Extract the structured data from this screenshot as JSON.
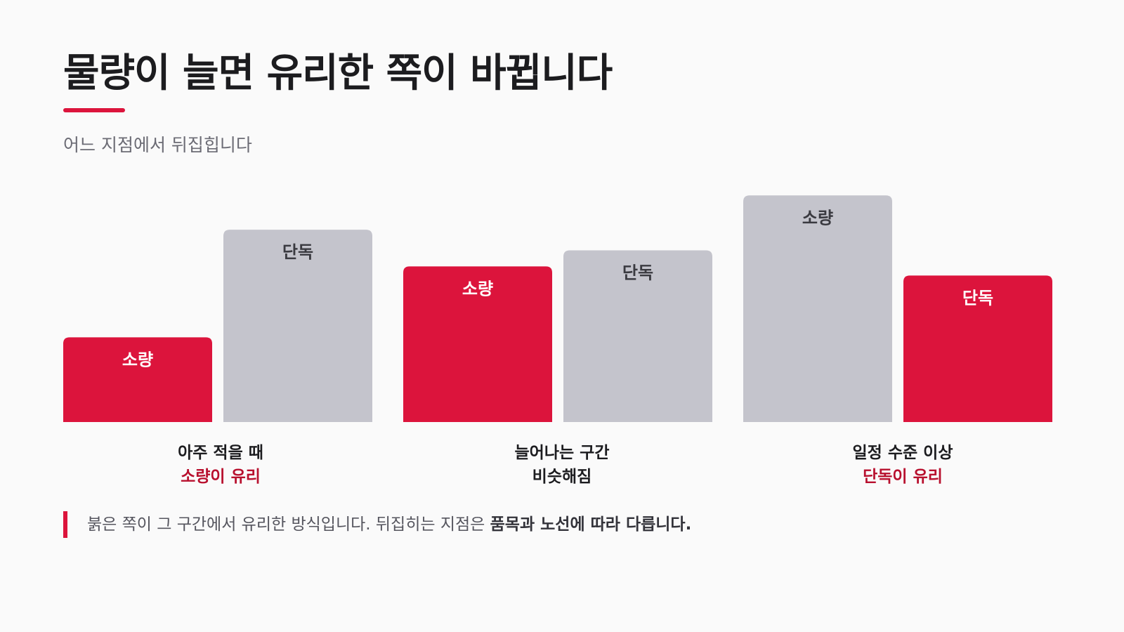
{
  "title": "물량이 늘면 유리한 쪽이 바뀝니다",
  "subtitle": "어느 지점에서 뒤집힙니다",
  "colors": {
    "accent": "#dc143c",
    "neutral": "#c4c4cc",
    "on_neutral_text": "#3a3a40",
    "on_accent_text": "#ffffff",
    "winner_label": "#b8102e"
  },
  "chart_data": {
    "type": "bar",
    "categories": [
      "아주 적을 때",
      "늘어나는 구간",
      "일정 수준 이상"
    ],
    "series_labels": [
      "소량",
      "단독"
    ],
    "values": [
      [
        0.37,
        0.84
      ],
      [
        0.68,
        0.75
      ],
      [
        0.99,
        0.64
      ]
    ],
    "highlighted": [
      "소량",
      "소량",
      "단독"
    ],
    "ylim": [
      0,
      1
    ],
    "groups": [
      {
        "bars": [
          {
            "label": "소량",
            "value": 0.37,
            "highlight": true
          },
          {
            "label": "단독",
            "value": 0.84,
            "highlight": false
          }
        ]
      },
      {
        "bars": [
          {
            "label": "소량",
            "value": 0.68,
            "highlight": true
          },
          {
            "label": "단독",
            "value": 0.75,
            "highlight": false
          }
        ]
      },
      {
        "bars": [
          {
            "label": "소량",
            "value": 0.99,
            "highlight": false
          },
          {
            "label": "단독",
            "value": 0.64,
            "highlight": true
          }
        ]
      }
    ]
  },
  "group_labels": [
    {
      "line1": "아주 적을 때",
      "line2": "소량이 유리",
      "line2_color": "#b8102e"
    },
    {
      "line1": "늘어나는 구간",
      "line2": "비슷해짐",
      "line2_color": "#1c1c1f"
    },
    {
      "line1": "일정 수준 이상",
      "line2": "단독이 유리",
      "line2_color": "#b8102e"
    }
  ],
  "footnote": {
    "text": "붉은 쪽이 그 구간에서 유리한 방식입니다. 뒤집히는 지점은 ",
    "emphasis": "품목과 노선에 따라 다릅니다."
  }
}
